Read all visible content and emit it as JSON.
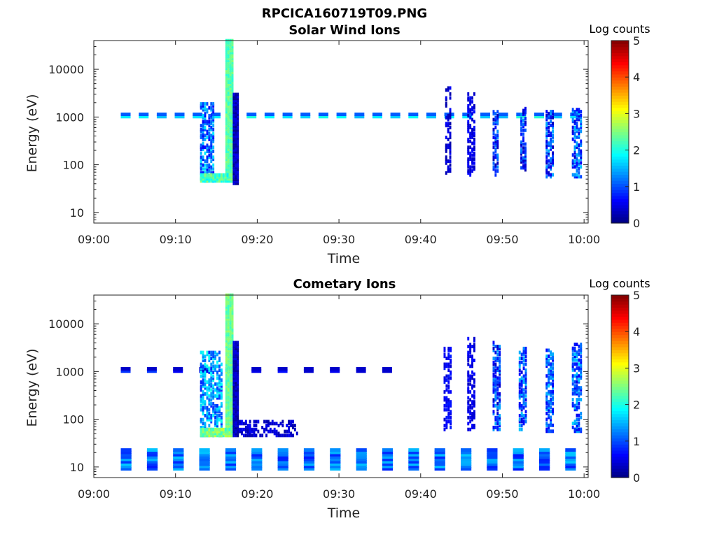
{
  "figure": {
    "title": "RPCICA160719T09.PNG"
  },
  "chart_data": [
    {
      "type": "heatmap",
      "title": "Solar Wind Ions",
      "xlabel": "Time",
      "ylabel": "Energy (eV)",
      "x_ticks": [
        "09:00",
        "09:10",
        "09:20",
        "09:30",
        "09:40",
        "09:50",
        "10:00"
      ],
      "x_tick_minutes": [
        0,
        10,
        20,
        30,
        40,
        50,
        60
      ],
      "xlim_minutes": [
        0,
        60.5
      ],
      "y_scale": "log",
      "y_ticks": [
        "10",
        "100",
        "1000",
        "10000"
      ],
      "y_tick_values": [
        10,
        100,
        1000,
        10000
      ],
      "ylim": [
        6,
        40000
      ],
      "colorbar": {
        "label": "Log counts",
        "ticks": [
          "0",
          "1",
          "2",
          "3",
          "4",
          "5"
        ],
        "range": [
          0,
          5
        ],
        "colormap": "jet"
      },
      "features": [
        {
          "kind": "line",
          "t_start": 3.3,
          "t_end": 60,
          "energy": 1000,
          "value": 1.8,
          "step": 2.2
        },
        {
          "kind": "burst",
          "t_start": 13.0,
          "t_end": 14.6,
          "e_min": 45,
          "e_max": 2000,
          "value": 1.2
        },
        {
          "kind": "column",
          "t_start": 16.1,
          "t_end": 16.9,
          "e_min": 45,
          "e_max": 40000,
          "value": 2.3
        },
        {
          "kind": "band",
          "t_start": 13.0,
          "t_end": 17.0,
          "e_min": 45,
          "e_max": 60,
          "value": 2.2
        },
        {
          "kind": "column",
          "t_start": 17.0,
          "t_end": 17.6,
          "e_min": 40,
          "e_max": 3000,
          "value": 0.3
        },
        {
          "kind": "stack",
          "t_start": 43.0,
          "t_end": 43.6,
          "e_min": 60,
          "e_max": 4000,
          "value": 0.2
        },
        {
          "kind": "stack",
          "t_start": 45.7,
          "t_end": 46.5,
          "e_min": 60,
          "e_max": 3000,
          "value": 0.3
        },
        {
          "kind": "spike",
          "t_start": 48.8,
          "t_end": 49.4,
          "e_min": 60,
          "e_max": 1300,
          "value": 0.8
        },
        {
          "kind": "spike",
          "t_start": 52.2,
          "t_end": 52.8,
          "e_min": 70,
          "e_max": 1500,
          "value": 0.8
        },
        {
          "kind": "spike",
          "t_start": 55.3,
          "t_end": 56.2,
          "e_min": 55,
          "e_max": 1400,
          "value": 0.9
        },
        {
          "kind": "spike",
          "t_start": 58.5,
          "t_end": 59.6,
          "e_min": 55,
          "e_max": 1500,
          "value": 1.0
        }
      ]
    },
    {
      "type": "heatmap",
      "title": "Cometary Ions",
      "xlabel": "Time",
      "ylabel": "Energy (eV)",
      "x_ticks": [
        "09:00",
        "09:10",
        "09:20",
        "09:30",
        "09:40",
        "09:50",
        "10:00"
      ],
      "x_tick_minutes": [
        0,
        10,
        20,
        30,
        40,
        50,
        60
      ],
      "xlim_minutes": [
        0,
        60.5
      ],
      "y_scale": "log",
      "y_ticks": [
        "10",
        "100",
        "1000",
        "10000"
      ],
      "y_tick_values": [
        10,
        100,
        1000,
        10000
      ],
      "ylim": [
        6,
        40000
      ],
      "colorbar": {
        "label": "Log counts",
        "ticks": [
          "0",
          "1",
          "2",
          "3",
          "4",
          "5"
        ],
        "range": [
          0,
          5
        ],
        "colormap": "jet"
      },
      "features": [
        {
          "kind": "lowband",
          "t_start": 3.3,
          "t_end": 60,
          "e_min": 9,
          "e_max": 24,
          "value": 1.0,
          "step": 3.2
        },
        {
          "kind": "line",
          "t_start": 3.3,
          "t_end": 38,
          "energy": 1000,
          "value": 0.6,
          "step": 3.2
        },
        {
          "kind": "burst",
          "t_start": 13.0,
          "t_end": 15.6,
          "e_min": 45,
          "e_max": 2500,
          "value": 1.4
        },
        {
          "kind": "column",
          "t_start": 16.1,
          "t_end": 16.9,
          "e_min": 45,
          "e_max": 40000,
          "value": 2.4
        },
        {
          "kind": "band",
          "t_start": 13.0,
          "t_end": 17.0,
          "e_min": 45,
          "e_max": 65,
          "value": 2.5
        },
        {
          "kind": "column",
          "t_start": 17.0,
          "t_end": 17.6,
          "e_min": 45,
          "e_max": 4000,
          "value": 0.3
        },
        {
          "kind": "tail",
          "t_start": 17.5,
          "t_end": 25.0,
          "e_min": 45,
          "e_max": 90,
          "value": 0.2
        },
        {
          "kind": "stack",
          "t_start": 42.8,
          "t_end": 43.6,
          "e_min": 60,
          "e_max": 3000,
          "value": 0.4
        },
        {
          "kind": "stack",
          "t_start": 45.7,
          "t_end": 46.5,
          "e_min": 60,
          "e_max": 5000,
          "value": 0.3
        },
        {
          "kind": "spike",
          "t_start": 48.8,
          "t_end": 49.6,
          "e_min": 60,
          "e_max": 4000,
          "value": 0.9
        },
        {
          "kind": "spike",
          "t_start": 52.0,
          "t_end": 52.9,
          "e_min": 60,
          "e_max": 3000,
          "value": 1.0
        },
        {
          "kind": "spike",
          "t_start": 55.3,
          "t_end": 56.2,
          "e_min": 55,
          "e_max": 3000,
          "value": 1.1
        },
        {
          "kind": "spike",
          "t_start": 58.5,
          "t_end": 59.6,
          "e_min": 55,
          "e_max": 4000,
          "value": 1.1
        }
      ]
    }
  ]
}
